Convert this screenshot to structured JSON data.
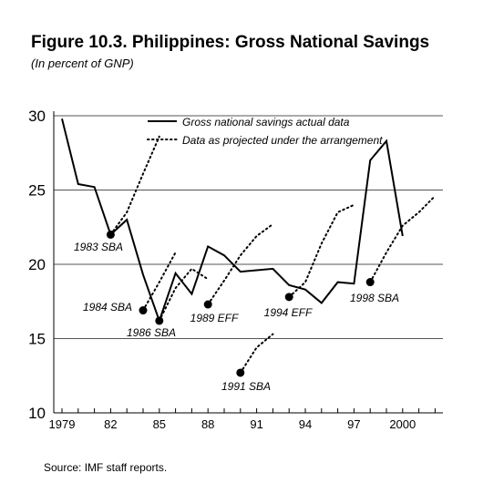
{
  "title": "Figure 10.3. Philippines: Gross National Savings",
  "subtitle": "(In percent of GNP)",
  "source": "Source: IMF staff reports.",
  "chart_data": {
    "type": "line",
    "xlim": [
      1979,
      2002.5
    ],
    "ylim": [
      10,
      30
    ],
    "yticks": [
      10,
      15,
      20,
      25,
      30
    ],
    "xtick_labels": [
      {
        "x": 1979,
        "label": "1979"
      },
      {
        "x": 1982,
        "label": "82"
      },
      {
        "x": 1985,
        "label": "85"
      },
      {
        "x": 1988,
        "label": "88"
      },
      {
        "x": 1991,
        "label": "91"
      },
      {
        "x": 1994,
        "label": "94"
      },
      {
        "x": 1997,
        "label": "97"
      },
      {
        "x": 2000,
        "label": "2000"
      }
    ],
    "gridlines": [
      15,
      20,
      25,
      30
    ],
    "legend": {
      "position": "top-center",
      "entries": [
        {
          "label": "Gross national savings actual data",
          "style": "solid"
        },
        {
          "label": "Data as projected under the arrangement",
          "style": "dotted"
        }
      ]
    },
    "actual": {
      "x": [
        1979,
        1980,
        1981,
        1982,
        1983,
        1984,
        1985,
        1986,
        1987,
        1988,
        1989,
        1990,
        1991,
        1992,
        1993,
        1994,
        1995,
        1996,
        1997,
        1998,
        1999,
        2000,
        2001
      ],
      "y": [
        29.8,
        25.4,
        25.2,
        22.0,
        23.0,
        19.3,
        16.2,
        19.4,
        18.0,
        21.2,
        20.6,
        19.5,
        19.6,
        19.7,
        18.6,
        18.3,
        17.4,
        18.8,
        18.7,
        27.0,
        28.3,
        21.9,
        null
      ]
    },
    "projections": [
      {
        "label": "1983 SBA",
        "x": [
          1982,
          1983,
          1984,
          1985
        ],
        "y": [
          22.0,
          23.5,
          26.1,
          28.6
        ]
      },
      {
        "label": "1984 SBA",
        "x": [
          1984,
          1985,
          1986
        ],
        "y": [
          16.9,
          18.8,
          20.8
        ]
      },
      {
        "label": "1986 SBA",
        "x": [
          1985,
          1986,
          1987,
          1988
        ],
        "y": [
          16.2,
          18.4,
          19.7,
          19.0
        ]
      },
      {
        "label": "1989 EFF",
        "x": [
          1988,
          1989,
          1990,
          1991,
          1992
        ],
        "y": [
          17.3,
          18.9,
          20.6,
          21.9,
          22.7
        ]
      },
      {
        "label": "1991 SBA",
        "x": [
          1990,
          1991,
          1992
        ],
        "y": [
          12.7,
          14.4,
          15.3
        ]
      },
      {
        "label": "1994 EFF",
        "x": [
          1993,
          1994,
          1995,
          1996,
          1997
        ],
        "y": [
          17.8,
          18.8,
          21.4,
          23.5,
          24.0
        ]
      },
      {
        "label": "1998 SBA",
        "x": [
          1998,
          1999,
          2000,
          2001,
          2002
        ],
        "y": [
          18.8,
          20.8,
          22.6,
          23.5,
          24.6
        ]
      }
    ]
  }
}
